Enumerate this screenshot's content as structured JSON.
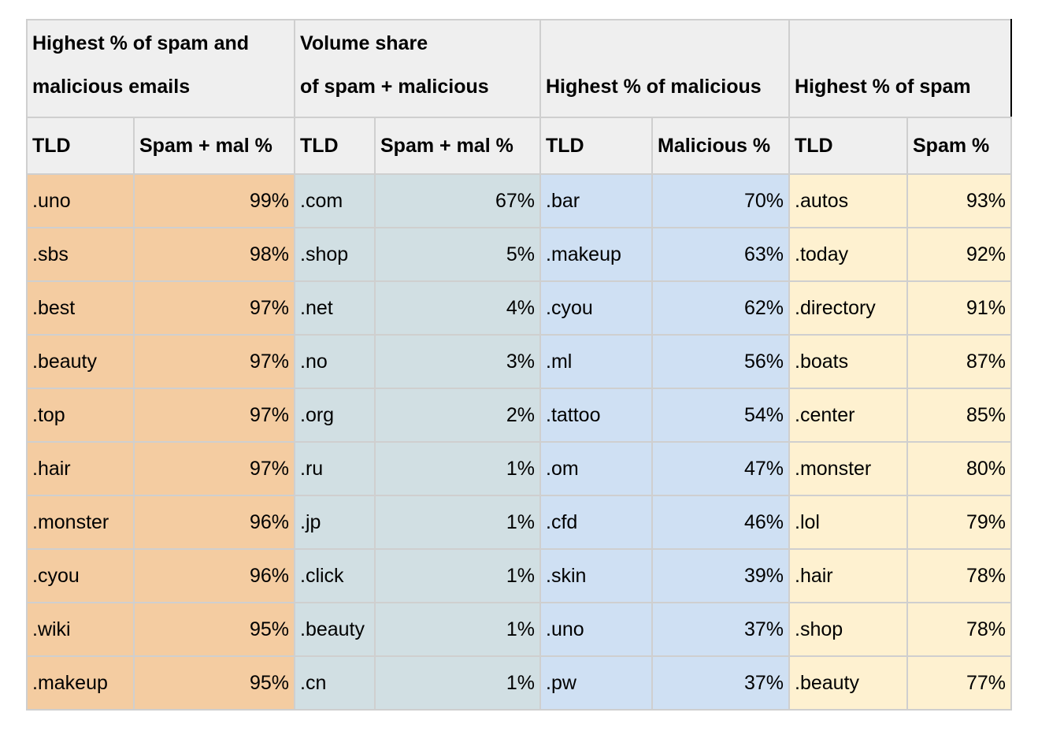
{
  "groups": [
    {
      "title_line1": "Highest % of spam and",
      "title_line2": "malicious emails",
      "col_tld": "TLD",
      "col_pct": "Spam + mal %",
      "rows": [
        {
          "tld": ".uno",
          "pct": "99%"
        },
        {
          "tld": ".sbs",
          "pct": "98%"
        },
        {
          "tld": ".best",
          "pct": "97%"
        },
        {
          "tld": ".beauty",
          "pct": "97%"
        },
        {
          "tld": ".top",
          "pct": "97%"
        },
        {
          "tld": ".hair",
          "pct": "97%"
        },
        {
          "tld": ".monster",
          "pct": "96%"
        },
        {
          "tld": ".cyou",
          "pct": "96%"
        },
        {
          "tld": ".wiki",
          "pct": "95%"
        },
        {
          "tld": ".makeup",
          "pct": "95%"
        }
      ]
    },
    {
      "title_line1": "Volume share",
      "title_line2": "of spam + malicious",
      "col_tld": "TLD",
      "col_pct": "Spam + mal %",
      "rows": [
        {
          "tld": ".com",
          "pct": "67%"
        },
        {
          "tld": ".shop",
          "pct": "5%"
        },
        {
          "tld": ".net",
          "pct": "4%"
        },
        {
          "tld": ".no",
          "pct": "3%"
        },
        {
          "tld": ".org",
          "pct": "2%"
        },
        {
          "tld": ".ru",
          "pct": "1%"
        },
        {
          "tld": ".jp",
          "pct": "1%"
        },
        {
          "tld": ".click",
          "pct": "1%"
        },
        {
          "tld": ".beauty",
          "pct": "1%"
        },
        {
          "tld": ".cn",
          "pct": "1%"
        }
      ]
    },
    {
      "title_line1": "",
      "title_line2": "Highest % of malicious",
      "col_tld": "TLD",
      "col_pct": "Malicious %",
      "rows": [
        {
          "tld": ".bar",
          "pct": "70%"
        },
        {
          "tld": ".makeup",
          "pct": "63%"
        },
        {
          "tld": ".cyou",
          "pct": "62%"
        },
        {
          "tld": ".ml",
          "pct": "56%"
        },
        {
          "tld": ".tattoo",
          "pct": "54%"
        },
        {
          "tld": ".om",
          "pct": "47%"
        },
        {
          "tld": ".cfd",
          "pct": "46%"
        },
        {
          "tld": ".skin",
          "pct": "39%"
        },
        {
          "tld": ".uno",
          "pct": "37%"
        },
        {
          "tld": ".pw",
          "pct": "37%"
        }
      ]
    },
    {
      "title_line1": "",
      "title_line2": "Highest % of spam",
      "col_tld": "TLD",
      "col_pct": "Spam %",
      "rows": [
        {
          "tld": ".autos",
          "pct": "93%"
        },
        {
          "tld": ".today",
          "pct": "92%"
        },
        {
          "tld": ".directory",
          "pct": "91%"
        },
        {
          "tld": ".boats",
          "pct": "87%"
        },
        {
          "tld": ".center",
          "pct": "85%"
        },
        {
          "tld": ".monster",
          "pct": "80%"
        },
        {
          "tld": ".lol",
          "pct": "79%"
        },
        {
          "tld": ".hair",
          "pct": "78%"
        },
        {
          "tld": ".shop",
          "pct": "78%"
        },
        {
          "tld": ".beauty",
          "pct": "77%"
        }
      ]
    }
  ],
  "colors": {
    "group1": "#f4cca1",
    "group2": "#d1dfe3",
    "group3": "#cfe0f3",
    "group4": "#fef1d0",
    "header": "#efefef"
  }
}
